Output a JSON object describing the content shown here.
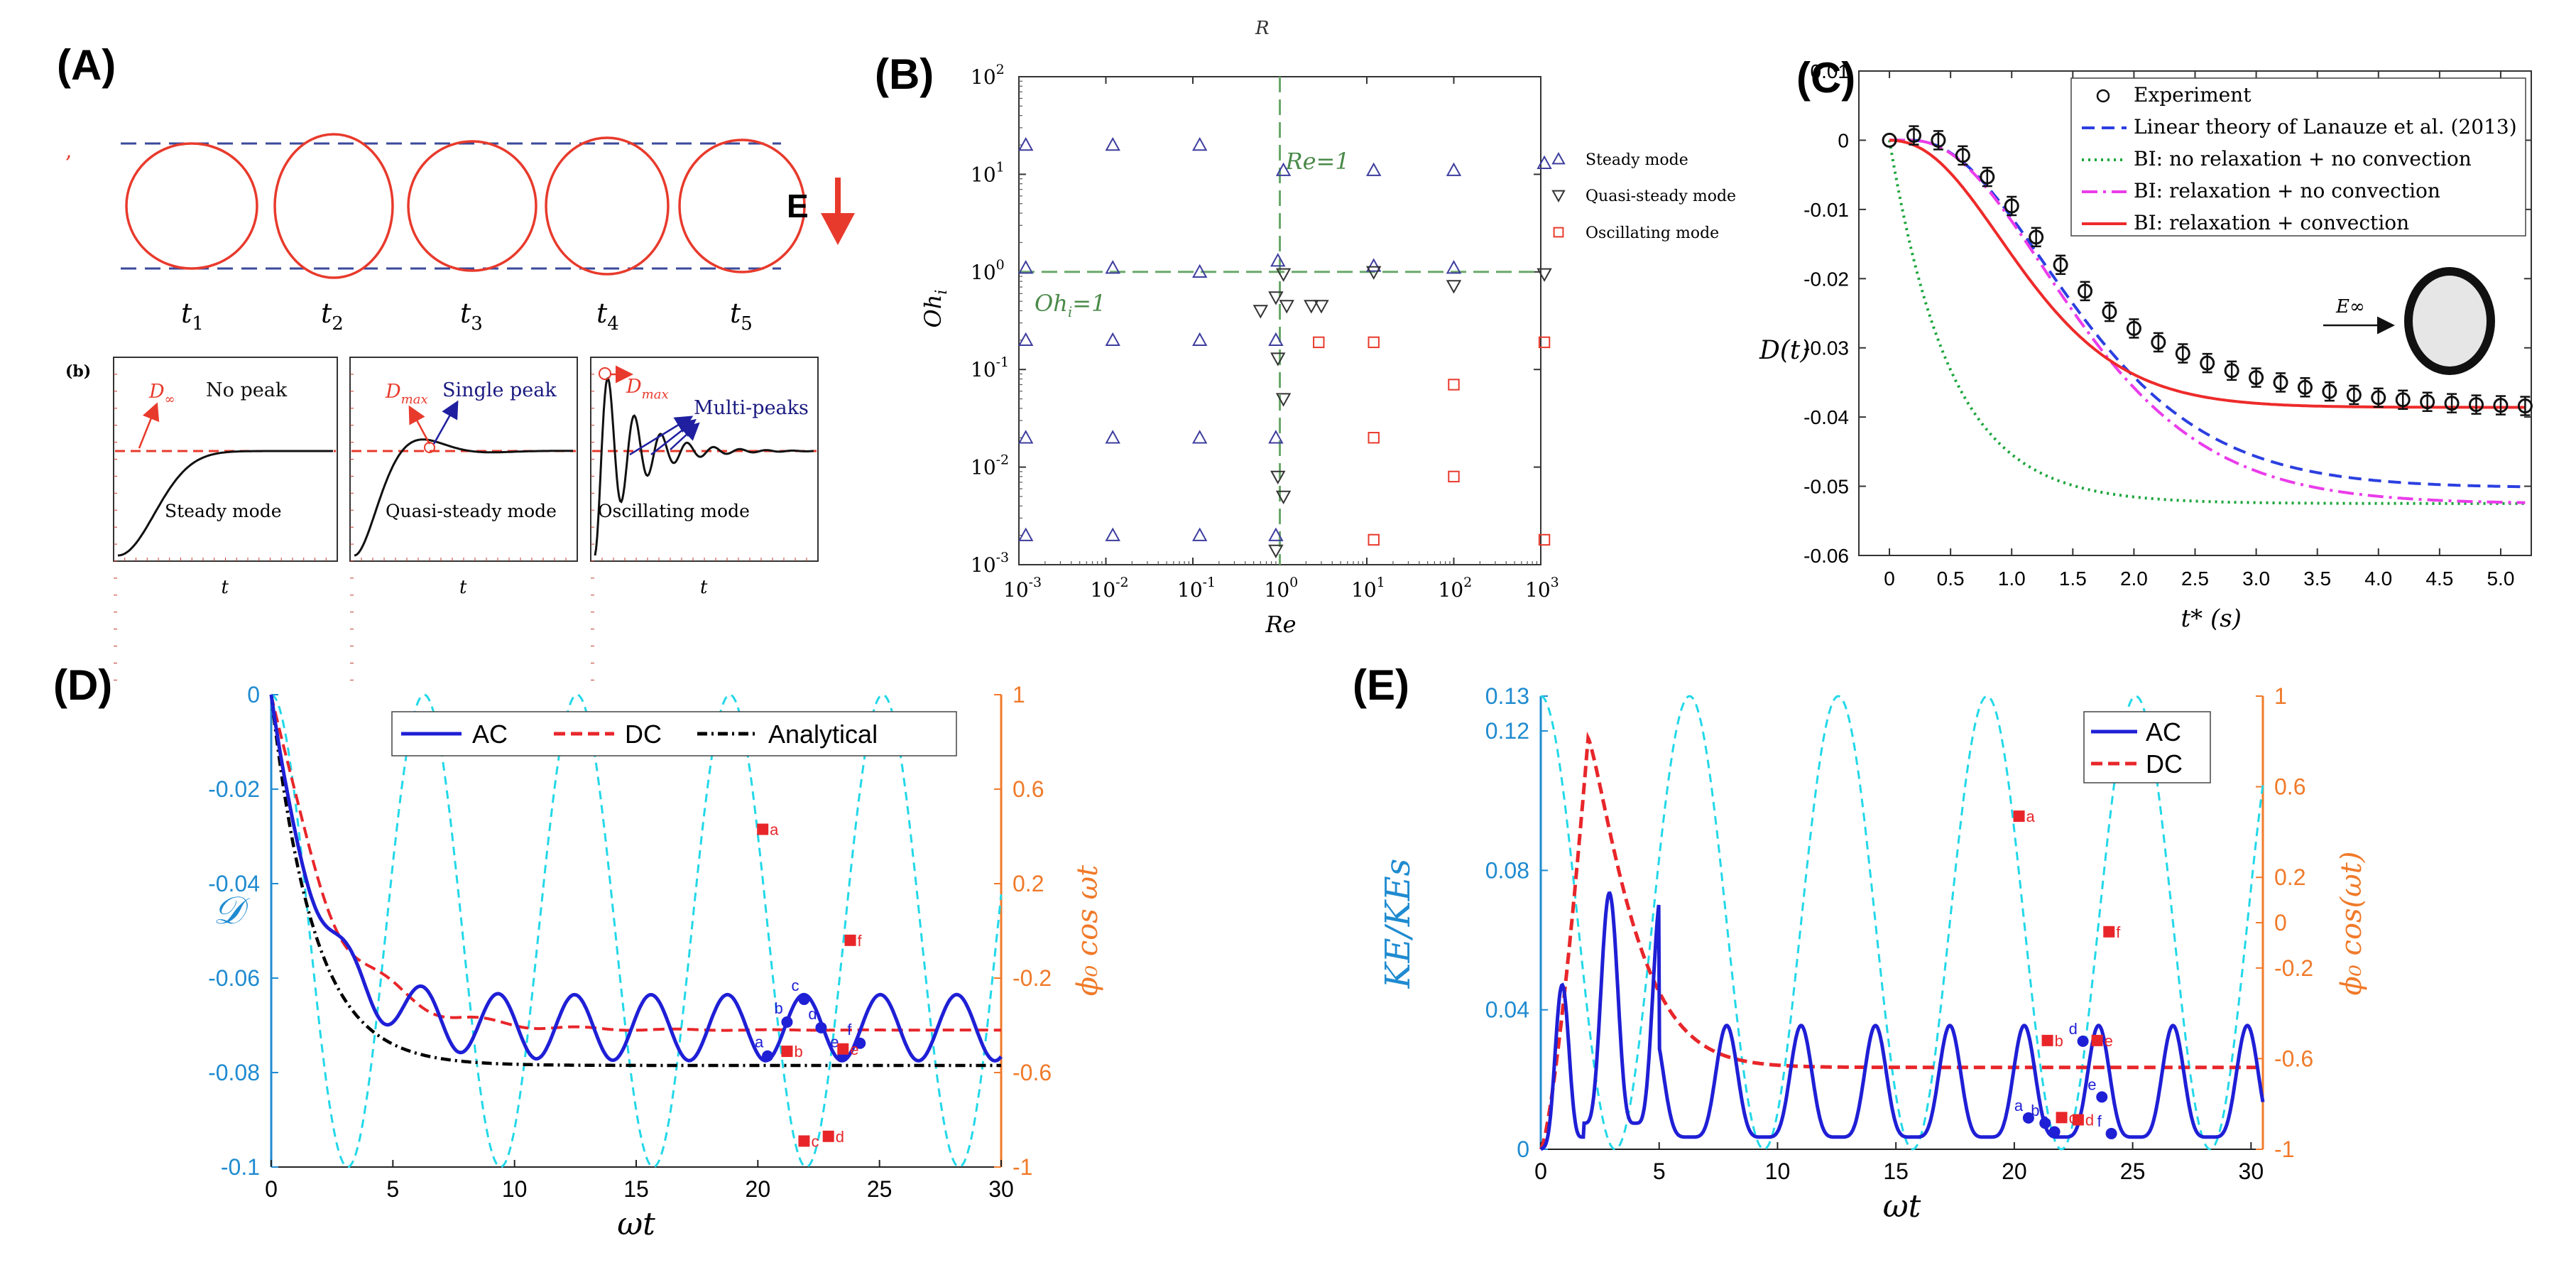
{
  "panels": {
    "A": {
      "label": "(A)",
      "e_label": "E",
      "times": [
        "t",
        "t",
        "t",
        "t",
        "t"
      ],
      "time_subs": [
        "1",
        "2",
        "3",
        "4",
        "5"
      ],
      "inset_label": "(b)",
      "insets": [
        {
          "mode": "Steady mode",
          "peak": "No peak",
          "d_label": "D",
          "d_sub": "∞",
          "xlabel": "t"
        },
        {
          "mode": "Quasi-steady mode",
          "peak": "Single peak",
          "d_label": "D",
          "d_sub": "max",
          "xlabel": "t"
        },
        {
          "mode": "Oscillating mode",
          "peak": "Multi-peaks",
          "d_label": "D",
          "d_sub": "max",
          "xlabel": "t"
        }
      ]
    },
    "B": {
      "label": "(B)",
      "top_mark": "R"
    },
    "C": {
      "label": "(C)",
      "inset_label": "E∞"
    },
    "D": {
      "label": "(D)"
    },
    "E": {
      "label": "(E)"
    }
  },
  "colors": {
    "red": "#e83a2c",
    "blue": "#1f1fd6",
    "cyan": "#22d8e8",
    "tick_blue": "#1f8bd0",
    "tick_orange": "#f07a2a",
    "navy": "#3d3d9e",
    "green": "#6aa86a"
  },
  "chart_data": [
    {
      "id": "B",
      "type": "scatter",
      "xlabel": "Re",
      "ylabel": "Oh",
      "ylabel_sub": "i",
      "xscale": "log",
      "yscale": "log",
      "xlim": [
        0.001,
        1000
      ],
      "ylim": [
        0.001,
        100
      ],
      "x_tick_exps": [
        -3,
        -2,
        -1,
        0,
        1,
        2,
        3
      ],
      "y_tick_exps": [
        -3,
        -2,
        -1,
        0,
        1,
        2
      ],
      "ref_lines": [
        {
          "axis": "x",
          "value": 1,
          "label": "Re=1"
        },
        {
          "axis": "y",
          "value": 1,
          "label": "Oh",
          "label_sub": "i",
          "label_suffix": "=1"
        }
      ],
      "legend": [
        "Steady mode",
        "Quasi-steady mode",
        "Oscillating mode"
      ],
      "series": [
        {
          "name": "Steady mode",
          "marker": "triangle-up",
          "color": "#3d3d9e",
          "points": [
            [
              0.0012,
              20
            ],
            [
              0.012,
              20
            ],
            [
              0.12,
              20
            ],
            [
              1.1,
              11
            ],
            [
              12,
              11
            ],
            [
              100,
              11
            ],
            [
              1100,
              13
            ],
            [
              0.0012,
              1.1
            ],
            [
              0.012,
              1.1
            ],
            [
              0.12,
              1.0
            ],
            [
              0.95,
              1.3
            ],
            [
              12,
              1.15
            ],
            [
              100,
              1.1
            ],
            [
              0.0012,
              0.2
            ],
            [
              0.012,
              0.2
            ],
            [
              0.12,
              0.2
            ],
            [
              0.9,
              0.2
            ],
            [
              0.0012,
              0.02
            ],
            [
              0.012,
              0.02
            ],
            [
              0.12,
              0.02
            ],
            [
              0.9,
              0.02
            ],
            [
              0.0012,
              0.002
            ],
            [
              0.012,
              0.002
            ],
            [
              0.12,
              0.002
            ],
            [
              0.9,
              0.002
            ]
          ]
        },
        {
          "name": "Quasi-steady mode",
          "marker": "triangle-down",
          "color": "#333333",
          "points": [
            [
              0.6,
              0.4
            ],
            [
              0.9,
              0.55
            ],
            [
              1.2,
              0.45
            ],
            [
              2.3,
              0.45
            ],
            [
              3.0,
              0.45
            ],
            [
              1.1,
              0.95
            ],
            [
              12,
              1.0
            ],
            [
              100,
              0.72
            ],
            [
              1100,
              0.95
            ],
            [
              0.95,
              0.13
            ],
            [
              1.1,
              0.05
            ],
            [
              0.95,
              0.008
            ],
            [
              1.1,
              0.005
            ],
            [
              0.9,
              0.0014
            ]
          ]
        },
        {
          "name": "Oscillating mode",
          "marker": "square",
          "color": "#e83a2c",
          "points": [
            [
              2.8,
              0.19
            ],
            [
              12,
              0.19
            ],
            [
              1100,
              0.19
            ],
            [
              100,
              0.07
            ],
            [
              12,
              0.02
            ],
            [
              100,
              0.008
            ],
            [
              12,
              0.0018
            ],
            [
              1100,
              0.0018
            ]
          ]
        }
      ]
    },
    {
      "id": "C",
      "type": "line",
      "xlabel": "t* (s)",
      "ylabel": "D(t)",
      "xlim": [
        -0.25,
        5.25
      ],
      "ylim": [
        -0.06,
        0.01
      ],
      "x_ticks": [
        "0",
        "0.5",
        "1.0",
        "1.5",
        "2.0",
        "2.5",
        "3.0",
        "3.5",
        "4.0",
        "4.5",
        "5.0"
      ],
      "y_ticks": [
        "0.01",
        "0",
        "-0.01",
        "-0.02",
        "-0.03",
        "-0.04",
        "-0.05",
        "-0.06"
      ],
      "legend": [
        "Experiment",
        "Linear theory of Lanauze et al. (2013)",
        "BI: no relaxation + no convection",
        "BI: relaxation + no convection",
        "BI: relaxation + convection"
      ],
      "series": [
        {
          "name": "Linear theory of Lanauze et al. (2013)",
          "style": "dashed",
          "color": "#2b3fe0",
          "model": {
            "A": -0.0502,
            "tau": 1.2,
            "lag": 0.7
          }
        },
        {
          "name": "BI: no relaxation + no convection",
          "style": "dotted",
          "color": "#1aa53a",
          "model": {
            "A": -0.0525,
            "tau": 0.5,
            "lag": 0.0
          }
        },
        {
          "name": "BI: relaxation + no convection",
          "style": "dashdot",
          "color": "#ea3cea",
          "model": {
            "A": -0.0525,
            "tau": 1.2,
            "lag": 0.7
          }
        },
        {
          "name": "BI: relaxation + convection",
          "style": "solid",
          "color": "#ee2a2a",
          "model": {
            "A": -0.0386,
            "tau": 0.85,
            "lag": 0.55
          }
        },
        {
          "name": "Experiment",
          "style": "markers",
          "color": "#111111",
          "x": [
            0,
            0.2,
            0.4,
            0.6,
            0.8,
            1.0,
            1.2,
            1.4,
            1.6,
            1.8,
            2.0,
            2.2,
            2.4,
            2.6,
            2.8,
            3.0,
            3.2,
            3.4,
            3.6,
            3.8,
            4.0,
            4.2,
            4.4,
            4.6,
            4.8,
            5.0,
            5.2
          ],
          "y": [
            0,
            0.0007,
            0,
            -0.0022,
            -0.0053,
            -0.0095,
            -0.014,
            -0.018,
            -0.0218,
            -0.0248,
            -0.0272,
            -0.0292,
            -0.0308,
            -0.0322,
            -0.0333,
            -0.0343,
            -0.035,
            -0.0357,
            -0.0363,
            -0.0368,
            -0.0372,
            -0.0375,
            -0.0378,
            -0.038,
            -0.0382,
            -0.0383,
            -0.0384
          ]
        }
      ]
    },
    {
      "id": "D",
      "type": "line",
      "xlabel": "ωt",
      "ylabel": "𝒟",
      "y2label": "ϕ₀ cos ωt",
      "xlim": [
        0,
        30
      ],
      "ylim": [
        -0.1,
        0
      ],
      "y2lim": [
        -1,
        1
      ],
      "x_ticks": [
        "0",
        "5",
        "10",
        "15",
        "20",
        "25",
        "30"
      ],
      "y_ticks": [
        "0",
        "-0.02",
        "-0.04",
        "-0.06",
        "-0.08",
        "-0.1"
      ],
      "y2_ticks": [
        "1",
        "0.6",
        "0.2",
        "-0.2",
        "-0.6",
        "-1"
      ],
      "legend": [
        "AC",
        "DC",
        "Analytical"
      ],
      "series": [
        {
          "name": "AC",
          "style": "solid",
          "color": "#1f1fd6",
          "model": {
            "mean": -0.0705,
            "amp": 0.007,
            "osc_omega": 2,
            "tau": 1.4
          }
        },
        {
          "name": "DC",
          "style": "dashed",
          "color": "#e8262a",
          "model": {
            "final": -0.071,
            "tau": 2.4
          }
        },
        {
          "name": "Analytical",
          "style": "dashdot",
          "color": "#000000",
          "model": {
            "final": -0.0785,
            "tau": 1.75
          }
        },
        {
          "name": "field",
          "style": "dashed",
          "color": "#22d8e8",
          "axis": "right",
          "model": {
            "amp": 1,
            "omega": 1
          }
        }
      ],
      "ac_markers": [
        {
          "label": "a",
          "x": 20.4,
          "y": -0.0765
        },
        {
          "label": "b",
          "x": 21.2,
          "y": -0.0693
        },
        {
          "label": "c",
          "x": 21.9,
          "y": -0.0645
        },
        {
          "label": "d",
          "x": 22.6,
          "y": -0.0705
        },
        {
          "label": "e",
          "x": 23.5,
          "y": -0.0765
        },
        {
          "label": "f",
          "x": 24.2,
          "y": -0.0738
        }
      ],
      "dc_markers": [
        {
          "label": "a",
          "x": 20.2,
          "y2": 0.43
        },
        {
          "label": "b",
          "x": 21.2,
          "y2": -0.51
        },
        {
          "label": "c",
          "x": 21.9,
          "y2": -0.89
        },
        {
          "label": "d",
          "x": 22.9,
          "y2": -0.87
        },
        {
          "label": "e",
          "x": 23.5,
          "y2": -0.5
        },
        {
          "label": "f",
          "x": 23.8,
          "y2": -0.04
        }
      ]
    },
    {
      "id": "E",
      "type": "line",
      "xlabel": "ωt",
      "ylabel": "KE/KEs",
      "y2label": "ϕ₀ cos(ωt)",
      "xlim": [
        0,
        30.5
      ],
      "ylim": [
        0,
        0.13
      ],
      "y2lim": [
        -1,
        1
      ],
      "x_ticks": [
        "0",
        "5",
        "10",
        "15",
        "20",
        "25",
        "30"
      ],
      "y_ticks": [
        "0.13",
        "0.12",
        "0.08",
        "0.04",
        "0"
      ],
      "y2_ticks": [
        "1",
        "0.6",
        "0.2",
        "0",
        "-0.2",
        "-0.6",
        "-1"
      ],
      "legend": [
        "AC",
        "DC"
      ],
      "series": [
        {
          "name": "AC",
          "style": "solid",
          "color": "#1f1fd6",
          "model": {
            "peak_period": 3.1416,
            "peak": 0.032,
            "first_peaks": [
              0.044,
              0.066
            ]
          }
        },
        {
          "name": "DC",
          "style": "dashed",
          "color": "#e8262a",
          "model": {
            "peak": 0.118,
            "peak_x": 2.0,
            "final": 0.0235
          }
        },
        {
          "name": "field",
          "style": "dashed",
          "color": "#22d8e8",
          "axis": "right",
          "model": {
            "amp": 1,
            "omega": 1
          }
        }
      ],
      "ac_markers": [
        {
          "label": "a",
          "x": 20.6,
          "y": 0.009
        },
        {
          "label": "b",
          "x": 21.3,
          "y": 0.0075
        },
        {
          "label": "c",
          "x": 21.7,
          "y": 0.005
        },
        {
          "label": "d",
          "x": 22.9,
          "y": 0.031
        },
        {
          "label": "e",
          "x": 23.7,
          "y": 0.015
        },
        {
          "label": "f",
          "x": 24.1,
          "y": 0.0045
        }
      ],
      "dc_markers": [
        {
          "label": "a",
          "x": 20.2,
          "y2": 0.47
        },
        {
          "label": "b",
          "x": 21.4,
          "y2": -0.52
        },
        {
          "label": "c",
          "x": 22.0,
          "y2": -0.86
        },
        {
          "label": "d",
          "x": 22.7,
          "y2": -0.87
        },
        {
          "label": "e",
          "x": 23.5,
          "y2": -0.52
        },
        {
          "label": "f",
          "x": 24.0,
          "y2": -0.04
        }
      ]
    }
  ]
}
